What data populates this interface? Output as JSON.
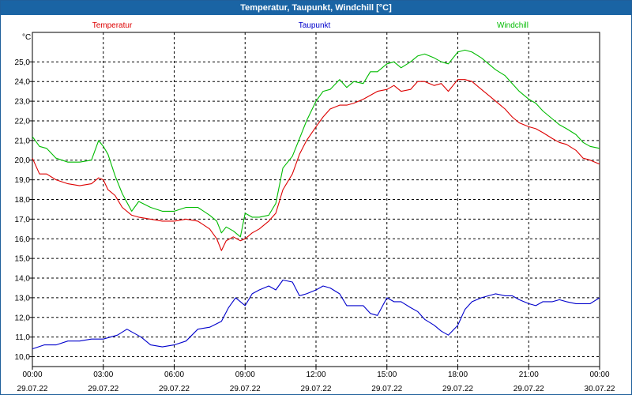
{
  "window": {
    "title": "Temperatur, Taupunkt, Windchill [°C]"
  },
  "chart_data": {
    "type": "line",
    "title": "Temperatur, Taupunkt, Windchill [°C]",
    "ylabel": "°C",
    "ylim": [
      9.5,
      26.5
    ],
    "yticks": [
      "10,0",
      "11,0",
      "12,0",
      "13,0",
      "14,0",
      "15,0",
      "16,0",
      "17,0",
      "18,0",
      "19,0",
      "20,0",
      "21,0",
      "22,0",
      "23,0",
      "24,0",
      "25,0"
    ],
    "ytick_values": [
      10,
      11,
      12,
      13,
      14,
      15,
      16,
      17,
      18,
      19,
      20,
      21,
      22,
      23,
      24,
      25
    ],
    "xlim": [
      0,
      24
    ],
    "xticks": [
      {
        "x": 0,
        "time": "00:00",
        "date": "29.07.22"
      },
      {
        "x": 3,
        "time": "03:00",
        "date": "29.07.22"
      },
      {
        "x": 6,
        "time": "06:00",
        "date": "29.07.22"
      },
      {
        "x": 9,
        "time": "09:00",
        "date": "29.07.22"
      },
      {
        "x": 12,
        "time": "12:00",
        "date": "29.07.22"
      },
      {
        "x": 15,
        "time": "15:00",
        "date": "29.07.22"
      },
      {
        "x": 18,
        "time": "18:00",
        "date": "29.07.22"
      },
      {
        "x": 21,
        "time": "21:00",
        "date": "29.07.22"
      },
      {
        "x": 24,
        "time": "00:00",
        "date": "30.07.22"
      }
    ],
    "grid": true,
    "legend": "top",
    "series": [
      {
        "name": "Temperatur",
        "color": "#dd0000",
        "x": [
          0,
          0.3,
          0.6,
          1,
          1.5,
          2,
          2.5,
          2.8,
          3,
          3.2,
          3.5,
          3.8,
          4.2,
          4.5,
          5,
          5.5,
          6,
          6.5,
          7,
          7.5,
          7.8,
          8,
          8.2,
          8.5,
          8.8,
          9,
          9.3,
          9.6,
          10,
          10.3,
          10.6,
          11,
          11.3,
          11.6,
          12,
          12.3,
          12.6,
          13,
          13.3,
          13.6,
          14,
          14.3,
          14.6,
          15,
          15.3,
          15.6,
          16,
          16.3,
          16.6,
          17,
          17.3,
          17.6,
          18,
          18.3,
          18.6,
          19,
          19.3,
          19.6,
          20,
          20.3,
          20.6,
          21,
          21.3,
          21.6,
          22,
          22.3,
          22.6,
          23,
          23.3,
          23.6,
          24
        ],
        "y": [
          20.1,
          19.3,
          19.3,
          19.0,
          18.8,
          18.7,
          18.8,
          19.1,
          19.0,
          18.5,
          18.2,
          17.6,
          17.2,
          17.1,
          17.0,
          16.9,
          16.9,
          17.0,
          16.9,
          16.5,
          16.0,
          15.4,
          15.9,
          16.1,
          15.9,
          16.0,
          16.3,
          16.5,
          16.9,
          17.3,
          18.5,
          19.3,
          20.3,
          21.0,
          21.7,
          22.2,
          22.6,
          22.8,
          22.8,
          22.9,
          23.1,
          23.3,
          23.5,
          23.6,
          23.8,
          23.5,
          23.6,
          24.0,
          24.0,
          23.8,
          23.9,
          23.5,
          24.1,
          24.1,
          24.0,
          23.6,
          23.3,
          23.0,
          22.6,
          22.2,
          21.9,
          21.7,
          21.6,
          21.4,
          21.1,
          20.9,
          20.8,
          20.5,
          20.1,
          20.0,
          19.8
        ]
      },
      {
        "name": "Taupunkt",
        "color": "#0000cc",
        "x": [
          0,
          0.5,
          1,
          1.5,
          2,
          2.5,
          3,
          3.3,
          3.6,
          4,
          4.3,
          4.6,
          5,
          5.5,
          6,
          6.5,
          7,
          7.5,
          8,
          8.3,
          8.6,
          9,
          9.3,
          9.6,
          10,
          10.3,
          10.6,
          11,
          11.3,
          11.6,
          12,
          12.3,
          12.6,
          13,
          13.3,
          13.6,
          14,
          14.3,
          14.6,
          15,
          15.3,
          15.6,
          16,
          16.3,
          16.6,
          17,
          17.3,
          17.6,
          18,
          18.3,
          18.6,
          19,
          19.3,
          19.6,
          20,
          20.3,
          20.6,
          21,
          21.3,
          21.6,
          22,
          22.3,
          22.6,
          23,
          23.3,
          23.6,
          24
        ],
        "y": [
          10.4,
          10.6,
          10.6,
          10.8,
          10.8,
          10.9,
          10.9,
          11.0,
          11.1,
          11.4,
          11.2,
          11.0,
          10.6,
          10.5,
          10.6,
          10.8,
          11.4,
          11.5,
          11.8,
          12.5,
          13.0,
          12.6,
          13.2,
          13.4,
          13.6,
          13.4,
          13.9,
          13.8,
          13.1,
          13.2,
          13.4,
          13.6,
          13.5,
          13.2,
          12.6,
          12.6,
          12.6,
          12.2,
          12.1,
          13.0,
          12.8,
          12.8,
          12.5,
          12.3,
          11.9,
          11.6,
          11.3,
          11.1,
          11.6,
          12.4,
          12.8,
          13.0,
          13.1,
          13.2,
          13.1,
          13.1,
          12.9,
          12.7,
          12.6,
          12.8,
          12.8,
          12.9,
          12.8,
          12.7,
          12.7,
          12.7,
          13.0
        ]
      },
      {
        "name": "Windchill",
        "color": "#00bb00",
        "x": [
          0,
          0.3,
          0.6,
          1,
          1.5,
          2,
          2.5,
          2.8,
          3,
          3.2,
          3.5,
          3.8,
          4.2,
          4.5,
          5,
          5.5,
          6,
          6.5,
          7,
          7.5,
          7.8,
          8,
          8.2,
          8.5,
          8.8,
          9,
          9.3,
          9.6,
          10,
          10.3,
          10.6,
          11,
          11.3,
          11.6,
          12,
          12.3,
          12.6,
          13,
          13.3,
          13.6,
          14,
          14.3,
          14.6,
          15,
          15.3,
          15.6,
          16,
          16.3,
          16.6,
          17,
          17.3,
          17.6,
          18,
          18.3,
          18.6,
          19,
          19.3,
          19.6,
          20,
          20.3,
          20.6,
          21,
          21.3,
          21.6,
          22,
          22.3,
          22.6,
          23,
          23.3,
          23.6,
          24
        ],
        "y": [
          21.2,
          20.7,
          20.6,
          20.1,
          19.9,
          19.9,
          20.0,
          21.0,
          20.7,
          20.3,
          19.2,
          18.3,
          17.4,
          17.9,
          17.6,
          17.4,
          17.4,
          17.6,
          17.6,
          17.2,
          16.9,
          16.3,
          16.6,
          16.4,
          16.1,
          17.3,
          17.1,
          17.1,
          17.2,
          17.8,
          19.6,
          20.2,
          21.1,
          22.0,
          23.0,
          23.5,
          23.6,
          24.1,
          23.7,
          24.0,
          23.9,
          24.5,
          24.5,
          24.9,
          25.0,
          24.7,
          25.0,
          25.3,
          25.4,
          25.2,
          25.0,
          24.9,
          25.5,
          25.6,
          25.5,
          25.2,
          24.9,
          24.6,
          24.3,
          23.9,
          23.5,
          23.1,
          22.9,
          22.5,
          22.1,
          21.8,
          21.6,
          21.3,
          20.9,
          20.7,
          20.6
        ]
      }
    ]
  }
}
